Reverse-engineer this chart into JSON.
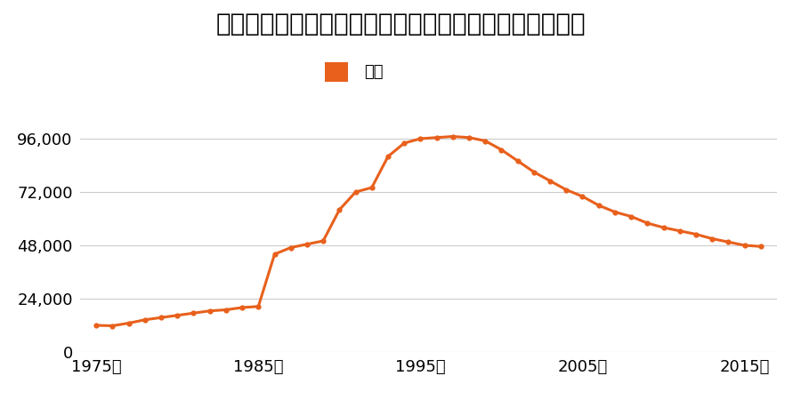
{
  "title": "長野県須坂市大字日滝字梨木原１１４７番５の地価推移",
  "legend_label": "価格",
  "line_color": "#e8601c",
  "marker_color": "#e8601c",
  "background_color": "#ffffff",
  "grid_color": "#cccccc",
  "xlim": [
    1974,
    2017
  ],
  "ylim": [
    0,
    108000
  ],
  "yticks": [
    0,
    24000,
    48000,
    72000,
    96000
  ],
  "xticks": [
    1975,
    1985,
    1995,
    2005,
    2015
  ],
  "years": [
    1975,
    1976,
    1977,
    1978,
    1979,
    1980,
    1981,
    1982,
    1983,
    1984,
    1985,
    1986,
    1987,
    1988,
    1989,
    1990,
    1991,
    1992,
    1993,
    1994,
    1995,
    1996,
    1997,
    1998,
    1999,
    2000,
    2001,
    2002,
    2003,
    2004,
    2005,
    2006,
    2007,
    2008,
    2009,
    2010,
    2011,
    2012,
    2013,
    2014,
    2015,
    2016
  ],
  "values": [
    12000,
    11800,
    13000,
    14500,
    15500,
    16500,
    17500,
    18500,
    19000,
    20000,
    20500,
    44000,
    47000,
    48500,
    50000,
    64000,
    72000,
    74000,
    88000,
    94000,
    96000,
    96500,
    97000,
    96500,
    95000,
    91000,
    86000,
    81000,
    77000,
    73000,
    70000,
    66000,
    63000,
    61000,
    58000,
    56000,
    54500,
    53000,
    51000,
    49500,
    48000,
    47500
  ],
  "title_fontsize": 20,
  "tick_fontsize": 13,
  "legend_fontsize": 13
}
